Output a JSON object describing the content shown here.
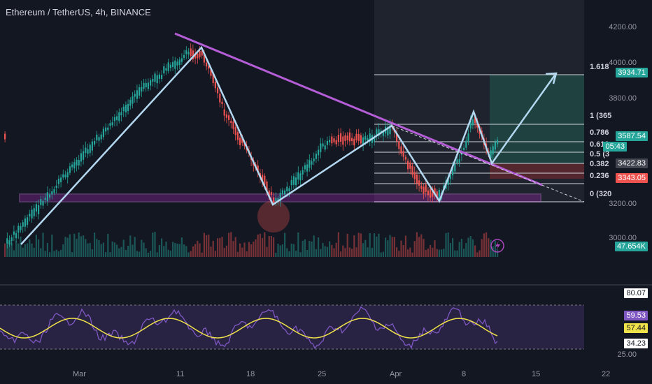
{
  "header": {
    "title": "Ethereum / TetherUS, 4h, BINANCE"
  },
  "price_axis": {
    "ticks": [
      "4200.00",
      "4000.00",
      "3800.00",
      "3200.00",
      "3000.00"
    ]
  },
  "time_axis": {
    "ticks": [
      "Mar",
      "11",
      "18",
      "25",
      "Apr",
      "8",
      "15",
      "22"
    ]
  },
  "fib_levels": [
    {
      "label": "1.618"
    },
    {
      "label": "1 (365"
    },
    {
      "label": "0.786"
    },
    {
      "label": "0.618"
    },
    {
      "label": "0.5 (3"
    },
    {
      "label": "0.382"
    },
    {
      "label": "0.236"
    },
    {
      "label": "0 (320"
    }
  ],
  "price_badges": {
    "target": "3934.71",
    "current": "3587.54",
    "countdown": "05:43",
    "level_a": "3422.83",
    "stop": "3343.05",
    "volume": "47.654K"
  },
  "rsi_axis": {
    "upper": "80.07",
    "rsi": "59.53",
    "ma": "57.44",
    "lower": "34.23",
    "base": "25.00"
  },
  "colors": {
    "background": "#131722",
    "up": "#26a69a",
    "down": "#ef5350",
    "trendline": "#9c27b0",
    "drawing": "#b2d7ef",
    "rsi_line": "#7e57c2",
    "rsi_ma": "#f0e24a"
  }
}
